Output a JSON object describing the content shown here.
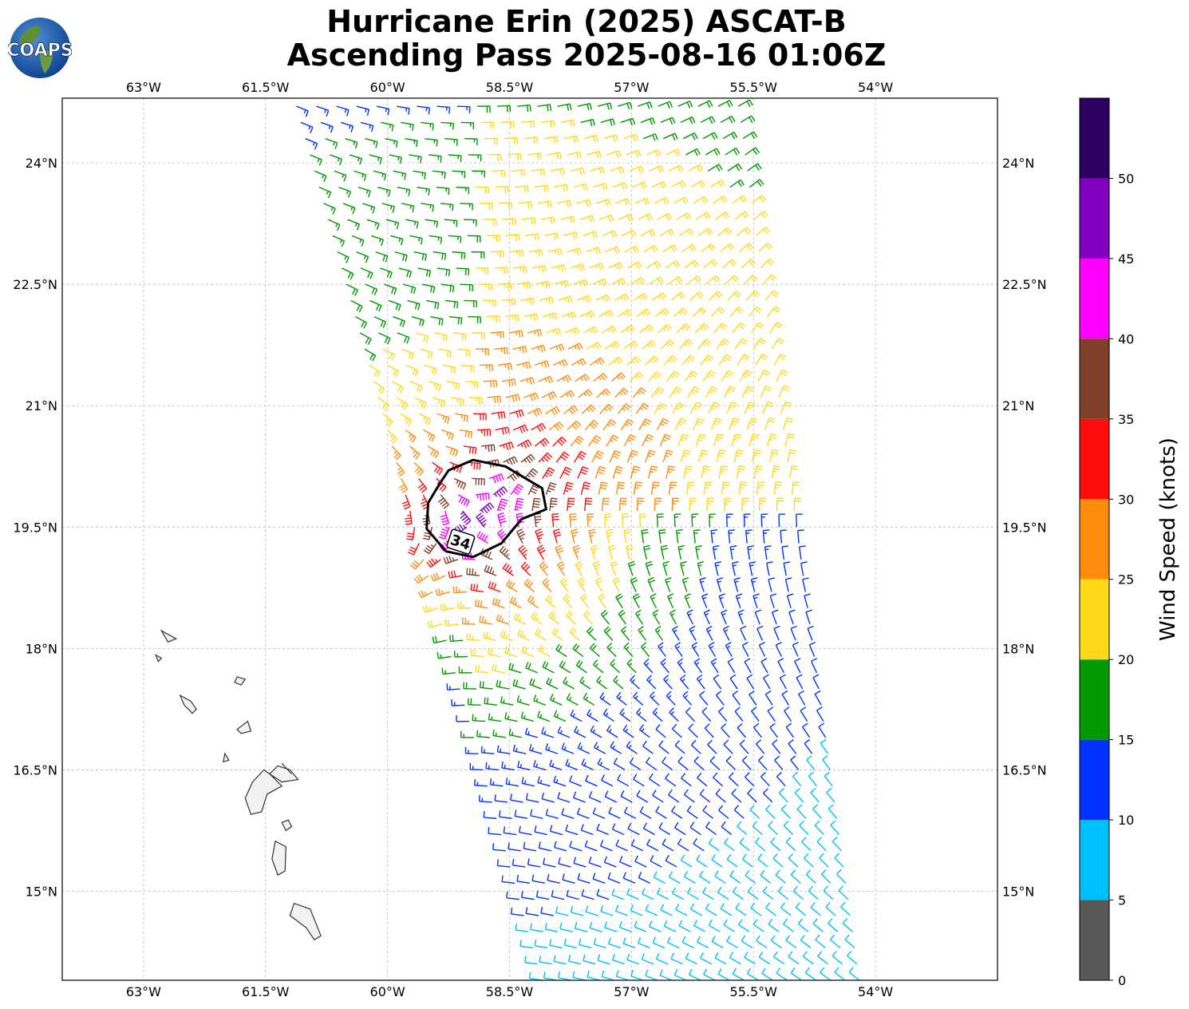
{
  "title": {
    "line1": "Hurricane Erin (2025) ASCAT-B",
    "line2": "Ascending Pass 2025-08-16 01:06Z"
  },
  "logo": {
    "text": "COAPS",
    "icon": "coaps-globe-logo"
  },
  "map": {
    "lon_range": [
      -64.0,
      -52.5
    ],
    "lat_range": [
      13.9,
      24.8
    ],
    "lon_ticks": [
      {
        "value": -63.0,
        "label": "63°W"
      },
      {
        "value": -61.5,
        "label": "61.5°W"
      },
      {
        "value": -60.0,
        "label": "60°W"
      },
      {
        "value": -58.5,
        "label": "58.5°W"
      },
      {
        "value": -57.0,
        "label": "57°W"
      },
      {
        "value": -55.5,
        "label": "55.5°W"
      },
      {
        "value": -54.0,
        "label": "54°W"
      }
    ],
    "lat_ticks": [
      {
        "value": 24.0,
        "label": "24°N"
      },
      {
        "value": 22.5,
        "label": "22.5°N"
      },
      {
        "value": 21.0,
        "label": "21°N"
      },
      {
        "value": 19.5,
        "label": "19.5°N"
      },
      {
        "value": 18.0,
        "label": "18°N"
      },
      {
        "value": 16.5,
        "label": "16.5°N"
      },
      {
        "value": 15.0,
        "label": "15°N"
      }
    ],
    "grid": true,
    "storm_center": {
      "lon": -58.95,
      "lat": 19.6
    },
    "contour_label": "34",
    "swath": {
      "note_units": "degrees",
      "left_edge_lon_at_top": -61.15,
      "left_edge_lon_at_bottom": -58.1,
      "right_edge_lon_at_top": -55.7,
      "right_edge_lon_at_bottom": -54.2
    }
  },
  "colorbar": {
    "label": "Wind Speed (knots)",
    "bounds": [
      0,
      5,
      10,
      15,
      20,
      25,
      30,
      35,
      40,
      45,
      50,
      55
    ],
    "tick_labels": [
      "0",
      "5",
      "10",
      "15",
      "20",
      "25",
      "30",
      "35",
      "40",
      "45",
      "50"
    ],
    "colors": [
      "#595959",
      "#00bfff",
      "#0033ff",
      "#009900",
      "#ffd919",
      "#ff8c0d",
      "#ff0d0d",
      "#80402a",
      "#ff00ff",
      "#8000bf",
      "#2b0061"
    ]
  }
}
